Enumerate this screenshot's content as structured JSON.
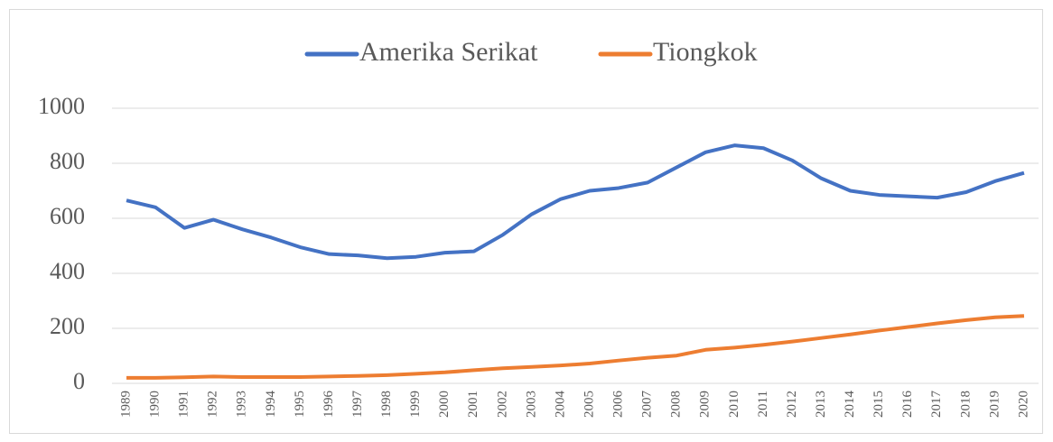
{
  "chart_data": {
    "type": "line",
    "categories": [
      "1989",
      "1990",
      "1991",
      "1992",
      "1993",
      "1994",
      "1995",
      "1996",
      "1997",
      "1998",
      "1999",
      "2000",
      "2001",
      "2002",
      "2003",
      "2004",
      "2005",
      "2006",
      "2007",
      "2008",
      "2009",
      "2010",
      "2011",
      "2012",
      "2013",
      "2014",
      "2015",
      "2016",
      "2017",
      "2018",
      "2019",
      "2020"
    ],
    "series": [
      {
        "name": "Amerika Serikat",
        "color": "#4472c4",
        "values": [
          665,
          640,
          565,
          595,
          560,
          530,
          495,
          470,
          465,
          455,
          460,
          475,
          480,
          540,
          615,
          670,
          700,
          710,
          730,
          785,
          840,
          865,
          855,
          810,
          745,
          700,
          685,
          680,
          675,
          695,
          735,
          765
        ]
      },
      {
        "name": "Tiongkok",
        "color": "#ed7d31",
        "values": [
          20,
          20,
          22,
          25,
          23,
          23,
          23,
          25,
          27,
          30,
          35,
          40,
          48,
          55,
          60,
          65,
          72,
          83,
          93,
          101,
          122,
          130,
          140,
          152,
          165,
          178,
          192,
          205,
          218,
          230,
          240,
          245
        ]
      }
    ],
    "ylim": [
      0,
      1000
    ],
    "yticks": [
      0,
      200,
      400,
      600,
      800,
      1000
    ],
    "grid": true,
    "legend": "top"
  }
}
